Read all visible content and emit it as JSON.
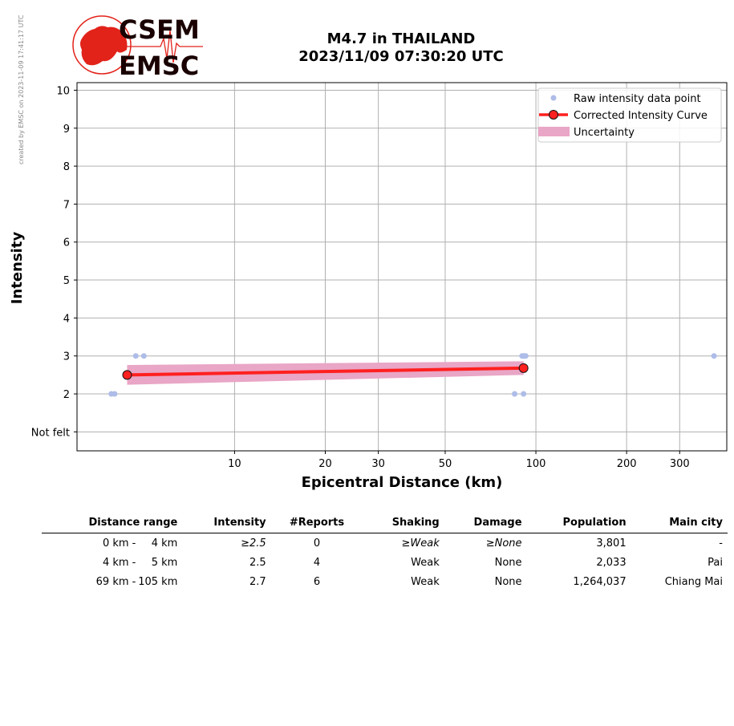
{
  "side_note": "created by EMSC on 2023-11-09 17:41:17 UTC",
  "logo": {
    "top_text": "CSEM",
    "bottom_text": "EMSC",
    "color": "#e2231a"
  },
  "header": {
    "title_line1": "M4.7 in THAILAND",
    "title_line2": "2023/11/09 07:30:20 UTC"
  },
  "chart_data": {
    "type": "scatter",
    "xlabel": "Epicentral Distance (km)",
    "ylabel": "Intensity",
    "x_scale": "log",
    "xlim": [
      3.0,
      430
    ],
    "ylim": [
      0.5,
      10.2
    ],
    "x_ticks": [
      10,
      20,
      30,
      50,
      100,
      200,
      300
    ],
    "y_ticks": [
      {
        "value": 1,
        "label": "Not felt"
      },
      {
        "value": 2,
        "label": "2"
      },
      {
        "value": 3,
        "label": "3"
      },
      {
        "value": 4,
        "label": "4"
      },
      {
        "value": 5,
        "label": "5"
      },
      {
        "value": 6,
        "label": "6"
      },
      {
        "value": 7,
        "label": "7"
      },
      {
        "value": 8,
        "label": "8"
      },
      {
        "value": 9,
        "label": "9"
      },
      {
        "value": 10,
        "label": "10"
      }
    ],
    "grid": true,
    "legend_position": "top-right",
    "legend": [
      "Raw intensity data point",
      "Corrected Intensity Curve",
      "Uncertainty"
    ],
    "raw_points": [
      {
        "x": 3.9,
        "y": 2
      },
      {
        "x": 4.0,
        "y": 2
      },
      {
        "x": 4.7,
        "y": 3
      },
      {
        "x": 5.0,
        "y": 3
      },
      {
        "x": 85,
        "y": 2
      },
      {
        "x": 91,
        "y": 2
      },
      {
        "x": 90,
        "y": 3
      },
      {
        "x": 91,
        "y": 3
      },
      {
        "x": 91.5,
        "y": 3
      },
      {
        "x": 92.5,
        "y": 3
      },
      {
        "x": 390,
        "y": 3
      }
    ],
    "curve": [
      {
        "x": 4.4,
        "y": 2.5
      },
      {
        "x": 91,
        "y": 2.68
      }
    ],
    "uncertainty": [
      {
        "x": 4.4,
        "lower": 2.24,
        "upper": 2.76
      },
      {
        "x": 91,
        "lower": 2.5,
        "upper": 2.86
      }
    ],
    "colors": {
      "raw": "#aebce8",
      "curve": "#ff2020",
      "marker_edge": "#111111",
      "band": "#e9a6c6",
      "grid": "#b0b0b0"
    }
  },
  "table": {
    "headers": [
      "Distance range",
      "Intensity",
      "#Reports",
      "Shaking",
      "Damage",
      "Population",
      "Main city"
    ],
    "rows": [
      {
        "dist_from": "0 km -",
        "dist_to": "4 km",
        "intensity": "≥2.5",
        "reports": "0",
        "shaking": "≥Weak",
        "damage": "≥None",
        "population": "3,801",
        "city": "-"
      },
      {
        "dist_from": "4 km -",
        "dist_to": "5 km",
        "intensity": "2.5",
        "reports": "4",
        "shaking": "Weak",
        "damage": "None",
        "population": "2,033",
        "city": "Pai"
      },
      {
        "dist_from": "69 km -",
        "dist_to": "105 km",
        "intensity": "2.7",
        "reports": "6",
        "shaking": "Weak",
        "damage": "None",
        "population": "1,264,037",
        "city": "Chiang Mai"
      }
    ]
  }
}
